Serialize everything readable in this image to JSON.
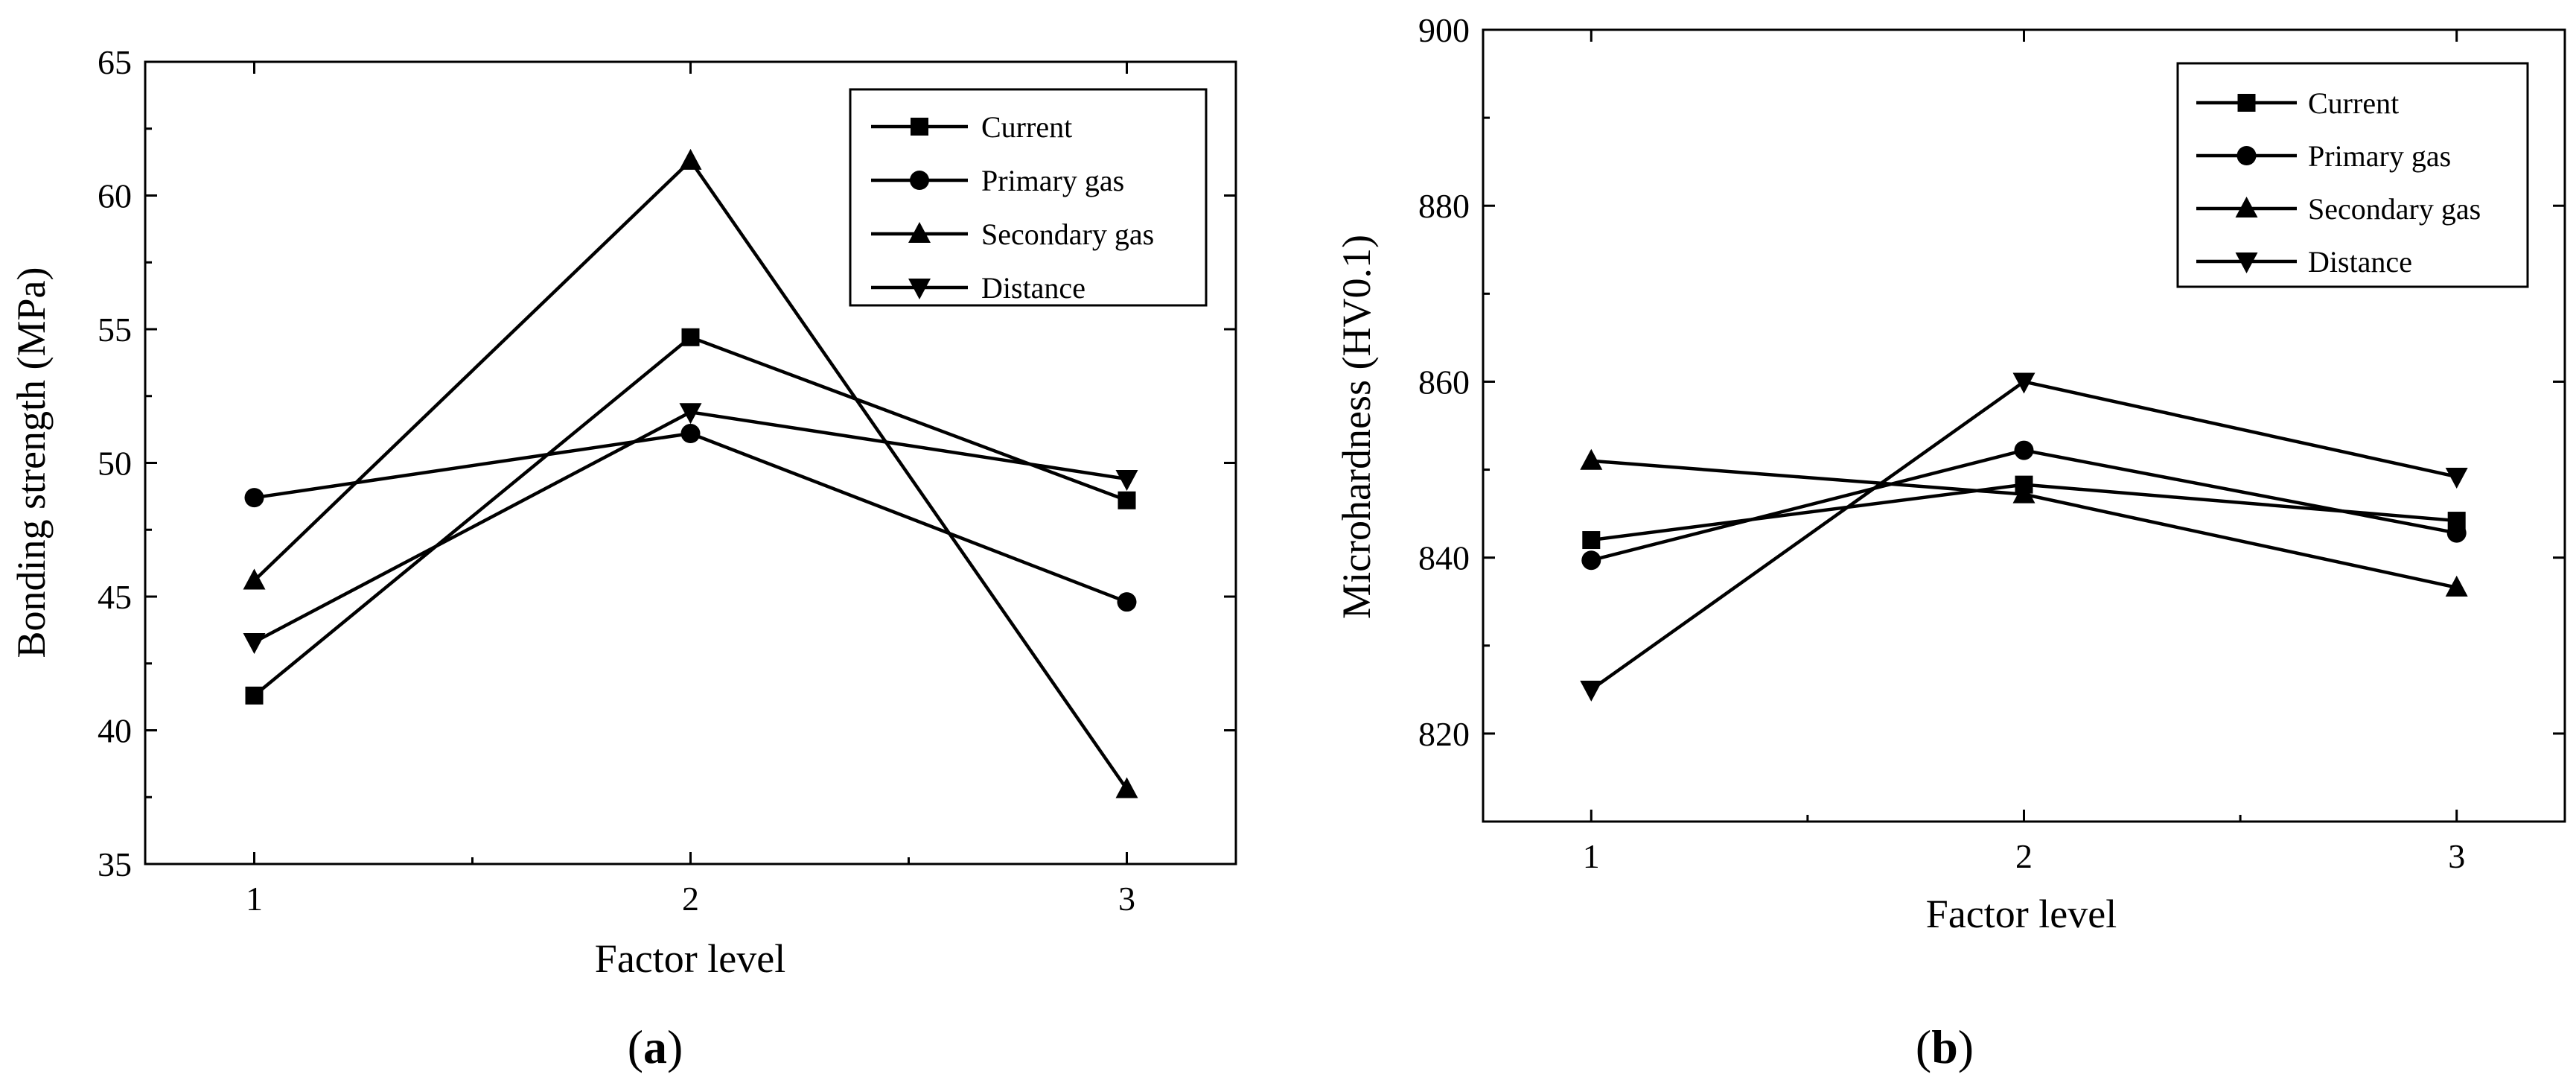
{
  "chart_data": [
    {
      "type": "line",
      "panel_label_pre": "(",
      "panel_label_letter": "a",
      "panel_label_post": ")",
      "xlabel": "Factor level",
      "ylabel": "Bonding strength (MPa)",
      "categories": [
        "1",
        "2",
        "3"
      ],
      "x": [
        1,
        2,
        3
      ],
      "xlim": [
        0.75,
        3.25
      ],
      "ylim": [
        35,
        65
      ],
      "yticks": [
        35,
        40,
        45,
        50,
        55,
        60,
        65
      ],
      "legend_position": "top-right",
      "series": [
        {
          "name": "Current",
          "marker": "square",
          "values": [
            41.3,
            54.7,
            48.6
          ]
        },
        {
          "name": "Primary gas",
          "marker": "circle",
          "values": [
            48.7,
            51.1,
            44.8
          ]
        },
        {
          "name": "Secondary gas",
          "marker": "triangle-up",
          "values": [
            45.6,
            61.3,
            37.8
          ]
        },
        {
          "name": "Distance",
          "marker": "triangle-down",
          "values": [
            43.3,
            51.9,
            49.4
          ]
        }
      ]
    },
    {
      "type": "line",
      "panel_label_pre": "(",
      "panel_label_letter": "b",
      "panel_label_post": ")",
      "xlabel": "Factor level",
      "ylabel": "Microhardness (HV0.1)",
      "categories": [
        "1",
        "2",
        "3"
      ],
      "x": [
        1,
        2,
        3
      ],
      "xlim": [
        0.75,
        3.25
      ],
      "ylim": [
        810,
        900
      ],
      "yticks": [
        820,
        840,
        860,
        880,
        900
      ],
      "legend_position": "top-right",
      "series": [
        {
          "name": "Current",
          "marker": "square",
          "values": [
            842.0,
            848.3,
            844.2
          ]
        },
        {
          "name": "Primary gas",
          "marker": "circle",
          "values": [
            839.7,
            852.2,
            842.8
          ]
        },
        {
          "name": "Secondary gas",
          "marker": "triangle-up",
          "values": [
            851.0,
            847.2,
            836.6
          ]
        },
        {
          "name": "Distance",
          "marker": "triangle-down",
          "values": [
            825.0,
            860.0,
            849.2
          ]
        }
      ]
    }
  ]
}
